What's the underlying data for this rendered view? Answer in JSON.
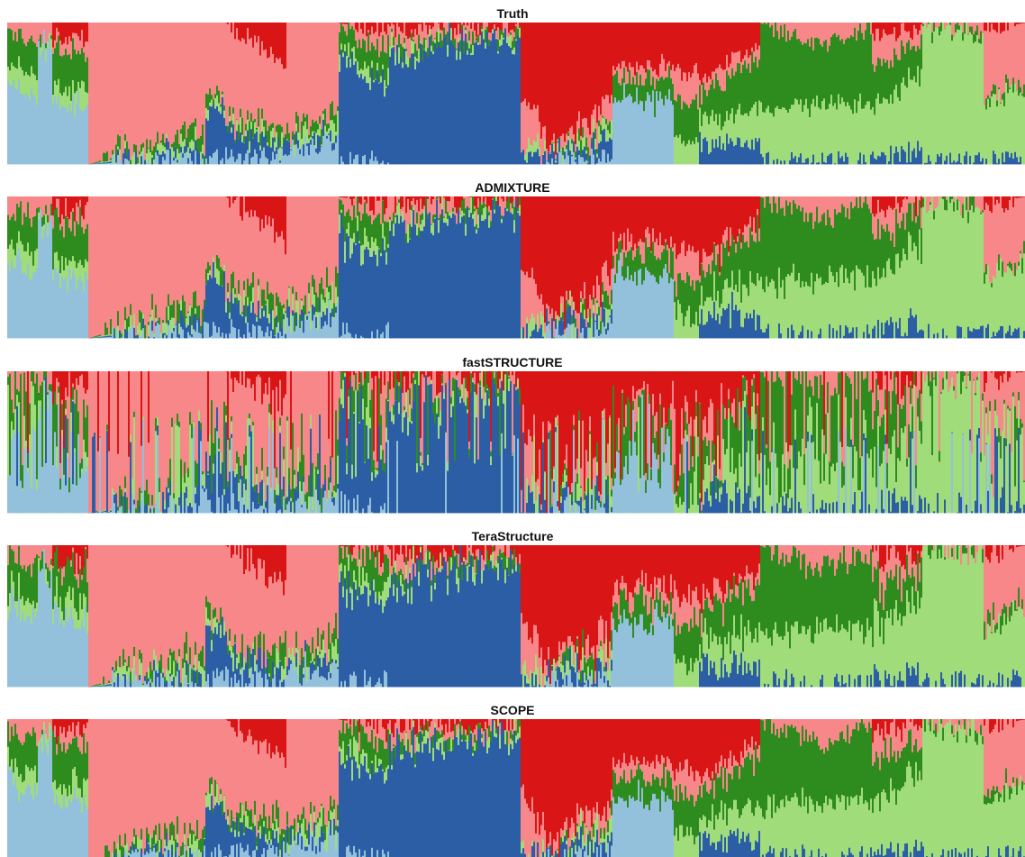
{
  "chart_data": {
    "type": "bar",
    "subtype": "stacked-admixture-proportions",
    "ylim": [
      0,
      1
    ],
    "grid": false,
    "legend": "none",
    "colors": {
      "light_blue": "#93c1dc",
      "dark_green": "#2e8b1e",
      "light_green": "#a0dc7a",
      "pink": "#f8878a",
      "red": "#d91515",
      "blue": "#2c5ea6"
    },
    "stack_order": [
      "light_blue",
      "blue",
      "light_green",
      "dark_green",
      "pink",
      "red"
    ],
    "panels": [
      {
        "title": "Truth",
        "noise": 0.03,
        "streaks": 0
      },
      {
        "title": "ADMIXTURE",
        "noise": 0.04,
        "streaks": 0
      },
      {
        "title": "fastSTRUCTURE",
        "noise": 0.07,
        "streaks": 0.4
      },
      {
        "title": "TeraStructure",
        "noise": 0.045,
        "streaks": 0
      },
      {
        "title": "SCOPE",
        "noise": 0.035,
        "streaks": 0
      }
    ],
    "groups": [
      {
        "start": 0.0,
        "end": 0.03,
        "light_blue": [
          0.6,
          0.45
        ],
        "blue": [
          0,
          0
        ],
        "light_green": [
          0.1,
          0.15
        ],
        "dark_green": [
          0.22,
          0.25
        ],
        "pink": [
          0.08,
          0.15
        ],
        "red": [
          0,
          0
        ]
      },
      {
        "start": 0.03,
        "end": 0.045,
        "light_blue": [
          0.82,
          0.82
        ],
        "blue": [
          0,
          0
        ],
        "light_green": [
          0.05,
          0.05
        ],
        "dark_green": [
          0.03,
          0.03
        ],
        "pink": [
          0.1,
          0.1
        ],
        "red": [
          0,
          0
        ]
      },
      {
        "start": 0.045,
        "end": 0.08,
        "light_blue": [
          0.45,
          0.4
        ],
        "blue": [
          0,
          0
        ],
        "light_green": [
          0.1,
          0.15
        ],
        "dark_green": [
          0.3,
          0.25
        ],
        "pink": [
          0.05,
          0.1
        ],
        "red": [
          0.1,
          0.1
        ]
      },
      {
        "start": 0.08,
        "end": 0.195,
        "light_blue": [
          0.0,
          0.05
        ],
        "blue": [
          0,
          0.05
        ],
        "light_green": [
          0.0,
          0.05
        ],
        "dark_green": [
          0.0,
          0.1
        ],
        "pink": [
          1.0,
          0.75
        ],
        "red": [
          0,
          0
        ]
      },
      {
        "start": 0.195,
        "end": 0.215,
        "light_blue": [
          0.05,
          0.05
        ],
        "blue": [
          0.35,
          0.35
        ],
        "light_green": [
          0.05,
          0.05
        ],
        "dark_green": [
          0.05,
          0.05
        ],
        "pink": [
          0.5,
          0.5
        ],
        "red": [
          0,
          0
        ]
      },
      {
        "start": 0.215,
        "end": 0.275,
        "light_blue": [
          0.05,
          0.05
        ],
        "blue": [
          0.2,
          0.05
        ],
        "light_green": [
          0.05,
          0.05
        ],
        "dark_green": [
          0.05,
          0.1
        ],
        "pink": [
          0.65,
          0.45
        ],
        "red": [
          0.0,
          0.3
        ]
      },
      {
        "start": 0.275,
        "end": 0.325,
        "light_blue": [
          0.1,
          0.15
        ],
        "blue": [
          0.05,
          0.05
        ],
        "light_green": [
          0.05,
          0.1
        ],
        "dark_green": [
          0.05,
          0.1
        ],
        "pink": [
          0.75,
          0.6
        ],
        "red": [
          0,
          0
        ]
      },
      {
        "start": 0.325,
        "end": 0.375,
        "light_blue": [
          0.02,
          0.02
        ],
        "blue": [
          0.7,
          0.55
        ],
        "light_green": [
          0.08,
          0.08
        ],
        "dark_green": [
          0.15,
          0.2
        ],
        "pink": [
          0.05,
          0.1
        ],
        "red": [
          0,
          0.05
        ]
      },
      {
        "start": 0.375,
        "end": 0.505,
        "light_blue": [
          0.0,
          0.0
        ],
        "blue": [
          0.75,
          0.92
        ],
        "light_green": [
          0.05,
          0.02
        ],
        "dark_green": [
          0.05,
          0.02
        ],
        "pink": [
          0.1,
          0.02
        ],
        "red": [
          0.05,
          0.02
        ]
      },
      {
        "start": 0.505,
        "end": 0.53,
        "light_blue": [
          0.0,
          0.0
        ],
        "blue": [
          0.05,
          0.05
        ],
        "light_green": [
          0.05,
          0.05
        ],
        "dark_green": [
          0.0,
          0.0
        ],
        "pink": [
          0.4,
          0.1
        ],
        "red": [
          0.5,
          0.8
        ]
      },
      {
        "start": 0.53,
        "end": 0.595,
        "light_blue": [
          0.02,
          0.05
        ],
        "blue": [
          0.05,
          0.1
        ],
        "light_green": [
          0.0,
          0.1
        ],
        "dark_green": [
          0.0,
          0.05
        ],
        "pink": [
          0.03,
          0.15
        ],
        "red": [
          0.9,
          0.55
        ]
      },
      {
        "start": 0.595,
        "end": 0.655,
        "light_blue": [
          0.45,
          0.45
        ],
        "blue": [
          0.0,
          0.0
        ],
        "light_green": [
          0.0,
          0.0
        ],
        "dark_green": [
          0.15,
          0.15
        ],
        "pink": [
          0.1,
          0.1
        ],
        "red": [
          0.3,
          0.3
        ]
      },
      {
        "start": 0.655,
        "end": 0.68,
        "light_blue": [
          0.0,
          0.0
        ],
        "blue": [
          0.0,
          0.0
        ],
        "light_green": [
          0.2,
          0.15
        ],
        "dark_green": [
          0.25,
          0.3
        ],
        "pink": [
          0.2,
          0.2
        ],
        "red": [
          0.35,
          0.35
        ]
      },
      {
        "start": 0.68,
        "end": 0.74,
        "light_blue": [
          0.0,
          0.0
        ],
        "blue": [
          0.15,
          0.15
        ],
        "light_green": [
          0.15,
          0.25
        ],
        "dark_green": [
          0.2,
          0.35
        ],
        "pink": [
          0.1,
          0.1
        ],
        "red": [
          0.4,
          0.15
        ]
      },
      {
        "start": 0.74,
        "end": 0.8,
        "light_blue": [
          0.0,
          0.0
        ],
        "blue": [
          0.02,
          0.02
        ],
        "light_green": [
          0.35,
          0.4
        ],
        "dark_green": [
          0.63,
          0.4
        ],
        "pink": [
          0.0,
          0.18
        ],
        "red": [
          0,
          0
        ]
      },
      {
        "start": 0.8,
        "end": 0.85,
        "light_blue": [
          0.0,
          0.0
        ],
        "blue": [
          0.02,
          0.02
        ],
        "light_green": [
          0.4,
          0.4
        ],
        "dark_green": [
          0.4,
          0.55
        ],
        "pink": [
          0.18,
          0.03
        ],
        "red": [
          0,
          0
        ]
      },
      {
        "start": 0.85,
        "end": 0.9,
        "light_blue": [
          0.0,
          0.0
        ],
        "blue": [
          0.05,
          0.1
        ],
        "light_green": [
          0.35,
          0.55
        ],
        "dark_green": [
          0.3,
          0.2
        ],
        "pink": [
          0.2,
          0.1
        ],
        "red": [
          0.1,
          0.05
        ]
      },
      {
        "start": 0.9,
        "end": 0.96,
        "light_blue": [
          0.0,
          0.0
        ],
        "blue": [
          0.02,
          0.02
        ],
        "light_green": [
          0.95,
          0.9
        ],
        "dark_green": [
          0.02,
          0.02
        ],
        "pink": [
          0.01,
          0.06
        ],
        "red": [
          0,
          0
        ]
      },
      {
        "start": 0.96,
        "end": 1.0,
        "light_blue": [
          0.0,
          0.0
        ],
        "blue": [
          0.03,
          0.03
        ],
        "light_green": [
          0.4,
          0.5
        ],
        "dark_green": [
          0.05,
          0.05
        ],
        "pink": [
          0.47,
          0.42
        ],
        "red": [
          0.05,
          0.0
        ]
      }
    ]
  }
}
